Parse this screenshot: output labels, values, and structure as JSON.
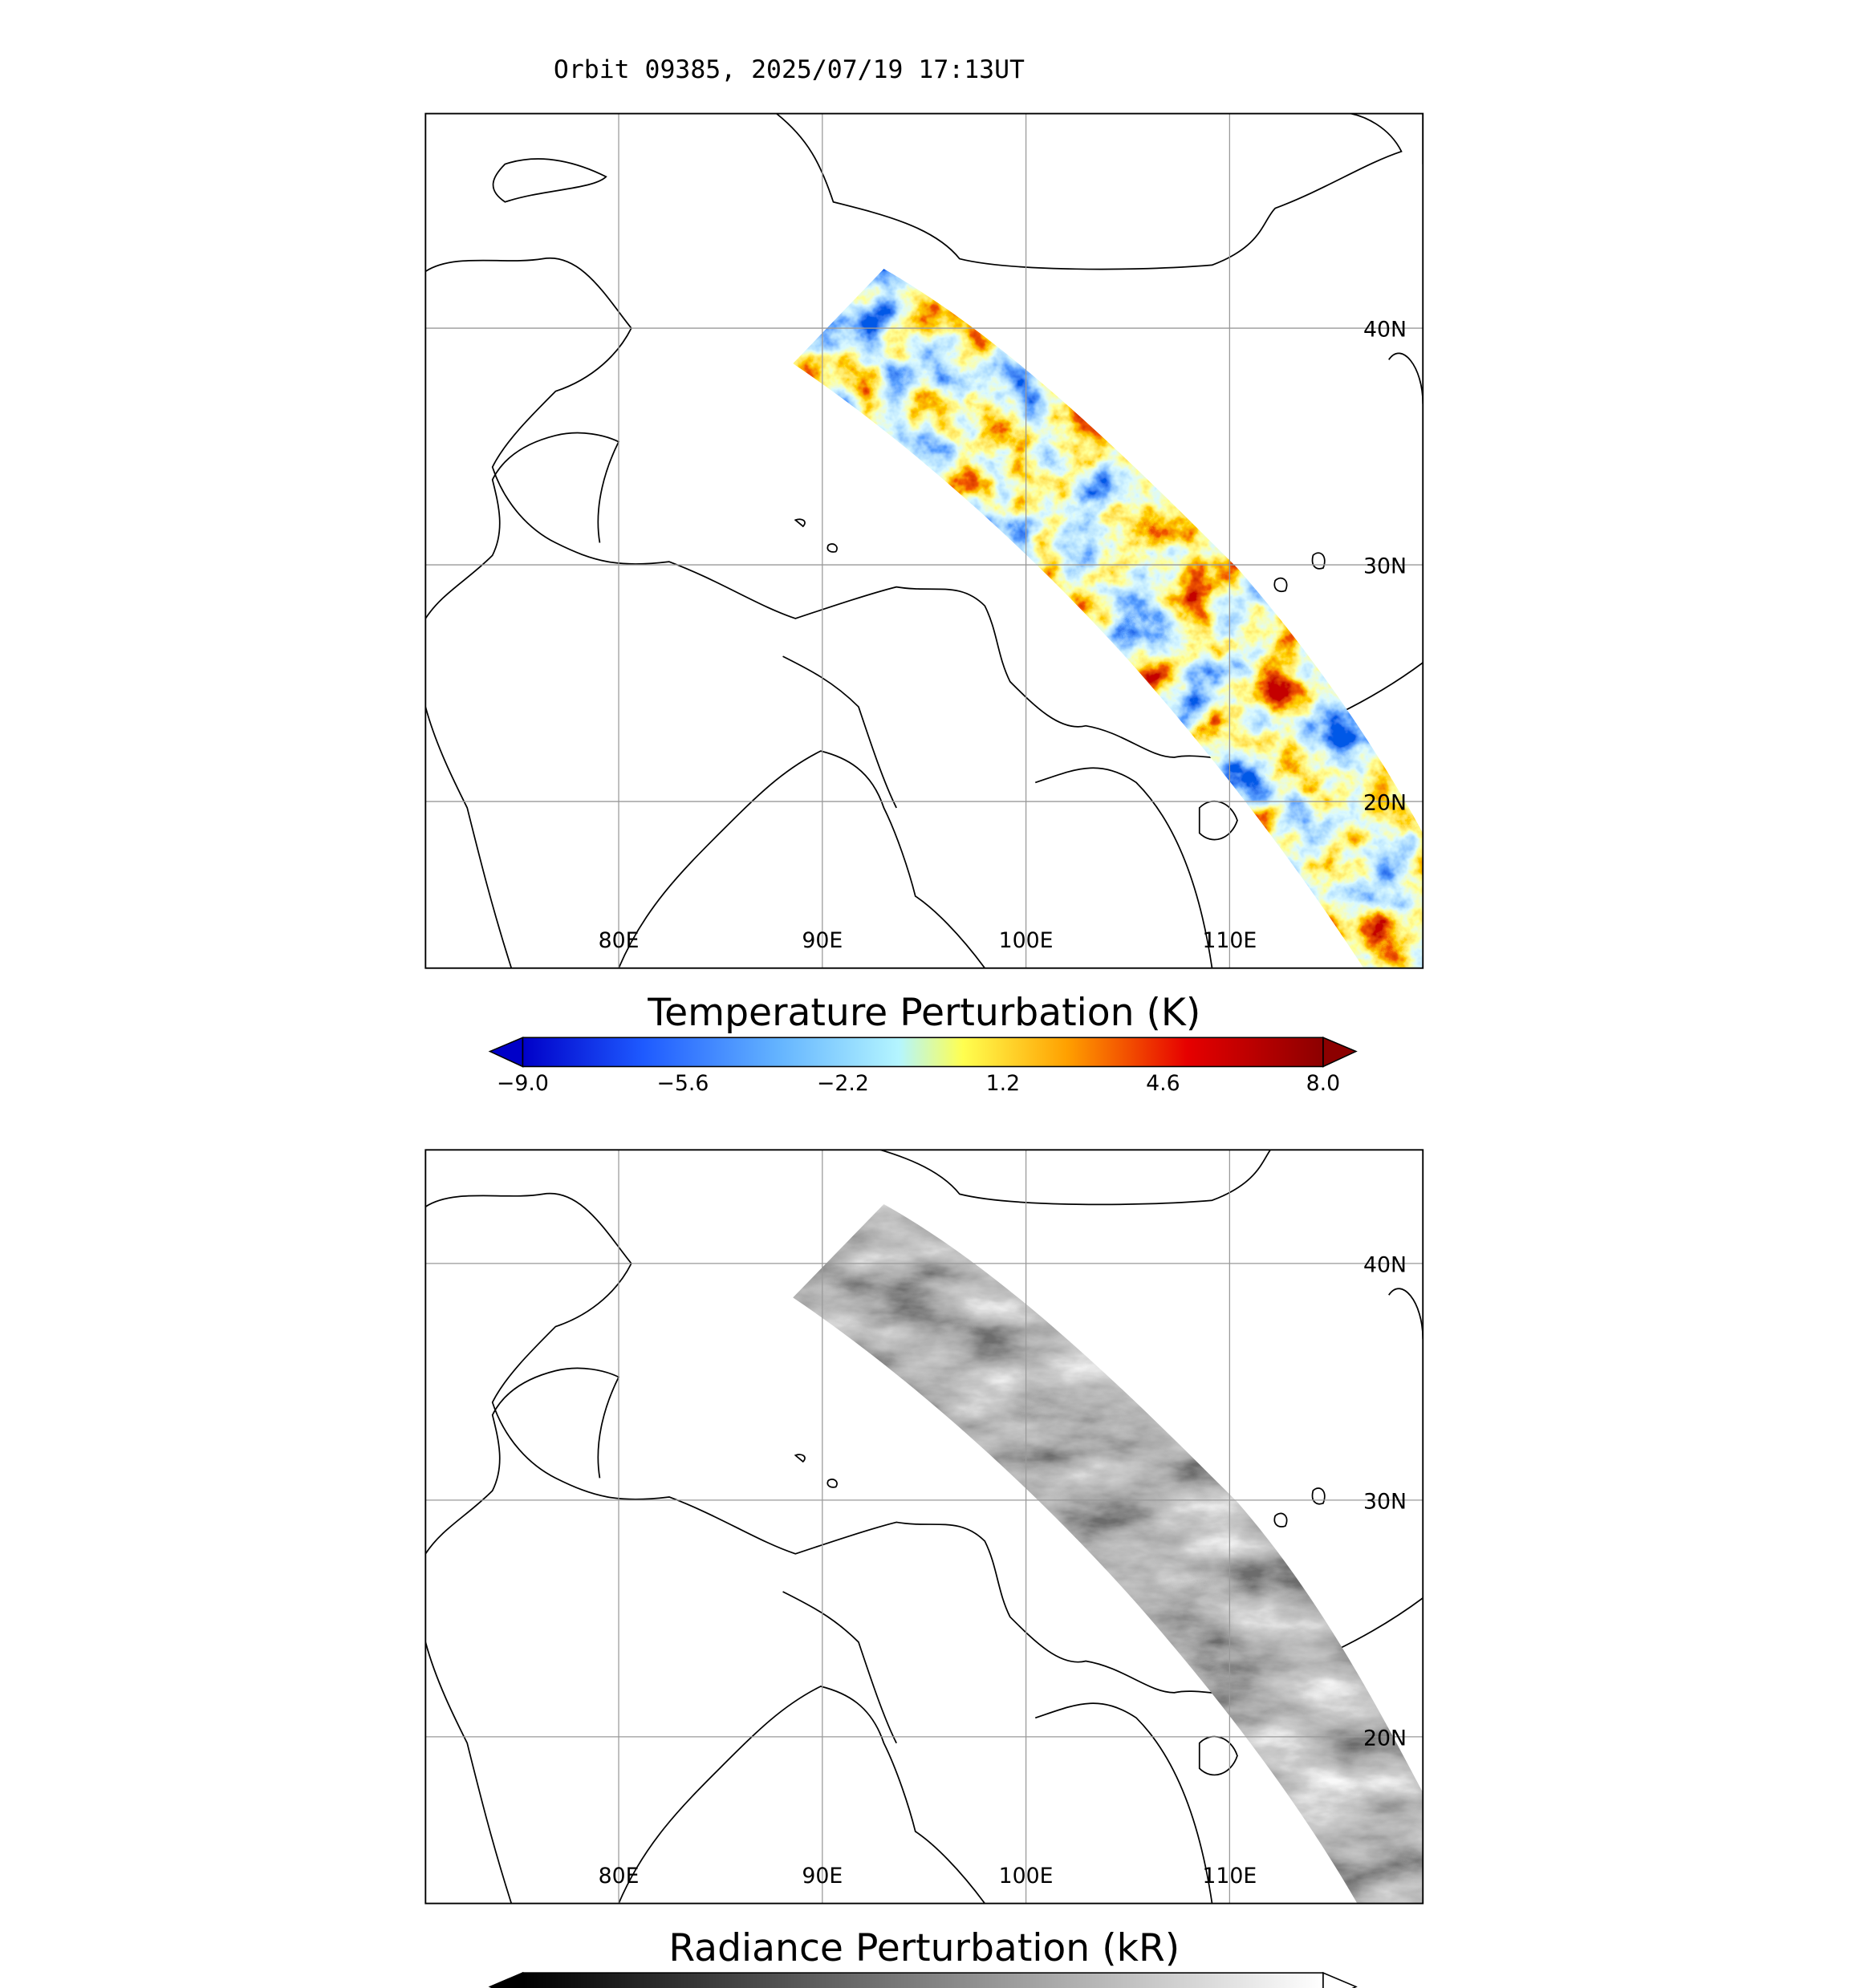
{
  "title": "Orbit 09385, 2025/07/19 17:13UT",
  "panels": [
    {
      "lon_labels": [
        {
          "value": 80,
          "label": "80E"
        },
        {
          "value": 90,
          "label": "90E"
        },
        {
          "value": 100,
          "label": "100E"
        },
        {
          "value": 110,
          "label": "110E"
        }
      ],
      "lat_labels": [
        {
          "value": 40,
          "label": "40N"
        },
        {
          "value": 30,
          "label": "30N"
        },
        {
          "value": 20,
          "label": "20N"
        }
      ],
      "colorbar": {
        "label": "Temperature Perturbation (K)",
        "ticks": [
          {
            "value": -9,
            "label": "−9.0"
          },
          {
            "value": -5.6,
            "label": "−5.6"
          },
          {
            "value": -2.2,
            "label": "−2.2"
          },
          {
            "value": 1.2,
            "label": "1.2"
          },
          {
            "value": 4.6,
            "label": "4.6"
          },
          {
            "value": 8,
            "label": "8.0"
          }
        ]
      }
    },
    {
      "lon_labels": [
        {
          "value": 80,
          "label": "80E"
        },
        {
          "value": 90,
          "label": "90E"
        },
        {
          "value": 100,
          "label": "100E"
        },
        {
          "value": 110,
          "label": "110E"
        }
      ],
      "lat_labels": [
        {
          "value": 40,
          "label": "40N"
        },
        {
          "value": 30,
          "label": "30N"
        },
        {
          "value": 20,
          "label": "20N"
        }
      ],
      "colorbar": {
        "label": "Radiance Perturbation (kR)"
      }
    }
  ]
}
